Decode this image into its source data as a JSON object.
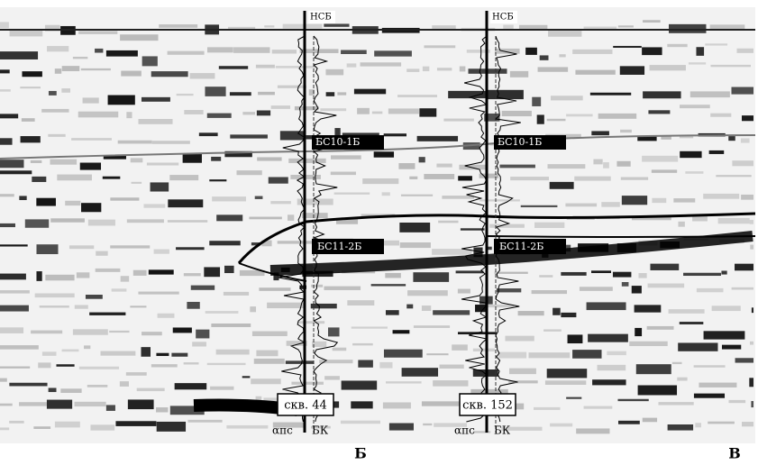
{
  "wells": [
    {
      "top_label": "НСБ",
      "horizon_upper": "БС10-1Б",
      "horizon_lower": "БС11-2Б",
      "name": "скв. 44",
      "curve_left": "αпс",
      "curve_right": "БК"
    },
    {
      "top_label": "НСБ",
      "horizon_upper": "БС10-1Б",
      "horizon_lower": "БС11-2Б",
      "name": "скв. 152",
      "curve_left": "αпс",
      "curve_right": "БК"
    }
  ],
  "section_labels": [
    "Б",
    "В"
  ]
}
